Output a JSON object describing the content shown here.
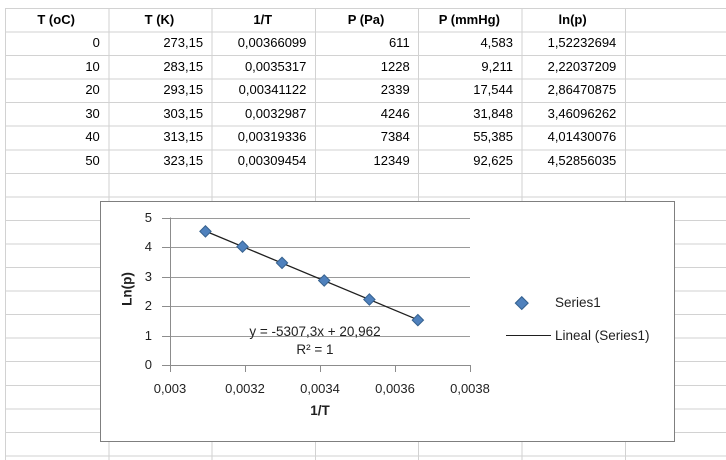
{
  "table": {
    "headers": [
      "T (oC)",
      "T (K)",
      "1/T",
      "P (Pa)",
      "P (mmHg)",
      "ln(p)"
    ],
    "rows": [
      [
        "0",
        "273,15",
        "0,00366099",
        "611",
        "4,583",
        "1,52232694"
      ],
      [
        "10",
        "283,15",
        "0,0035317",
        "1228",
        "9,211",
        "2,22037209"
      ],
      [
        "20",
        "293,15",
        "0,00341122",
        "2339",
        "17,544",
        "2,86470875"
      ],
      [
        "30",
        "303,15",
        "0,0032987",
        "4246",
        "31,848",
        "3,46096262"
      ],
      [
        "40",
        "313,15",
        "0,00319336",
        "7384",
        "55,385",
        "4,01430076"
      ],
      [
        "50",
        "323,15",
        "0,00309454",
        "12349",
        "92,625",
        "4,52856035"
      ]
    ]
  },
  "chart_data": {
    "type": "scatter",
    "title": "",
    "xlabel": "1/T",
    "ylabel": "Ln(p)",
    "xlim": [
      0.003,
      0.0038
    ],
    "ylim": [
      0,
      5
    ],
    "grid": "horizontal",
    "legend_position": "right",
    "xticks": {
      "values": [
        0.003,
        0.0032,
        0.0034,
        0.0036,
        0.0038
      ],
      "labels": [
        "0,003",
        "0,0032",
        "0,0034",
        "0,0036",
        "0,0038"
      ]
    },
    "yticks": {
      "values": [
        0,
        1,
        2,
        3,
        4,
        5
      ],
      "labels": [
        "0",
        "1",
        "2",
        "3",
        "4",
        "5"
      ]
    },
    "series": [
      {
        "name": "Series1",
        "type": "scatter",
        "marker": "diamond",
        "color": "#4f81bd",
        "points": [
          [
            0.00366099,
            1.52232694
          ],
          [
            0.0035317,
            2.22037209
          ],
          [
            0.00341122,
            2.86470875
          ],
          [
            0.0032987,
            3.46096262
          ],
          [
            0.00319336,
            4.01430076
          ],
          [
            0.00309454,
            4.52856035
          ]
        ]
      },
      {
        "name": "Lineal (Series1)",
        "type": "trendline",
        "color": "#1f1f1f",
        "slope": -5307.3,
        "intercept": 20.962,
        "x_range": [
          0.00309454,
          0.00366099
        ]
      }
    ],
    "annotations": {
      "equation": "y = -5307,3x + 20,962",
      "r_squared": "R² = 1"
    }
  },
  "colors": {
    "marker_fill": "#4f81bd",
    "marker_border": "#36618e",
    "trendline": "#1f1f1f",
    "chart_grid": "#9a9a9a",
    "chart_axis": "#8c8c8c",
    "chart_border": "#7f7f7f",
    "sheet_gridline": "#d2d2d2",
    "text": "#1f1f1f"
  }
}
